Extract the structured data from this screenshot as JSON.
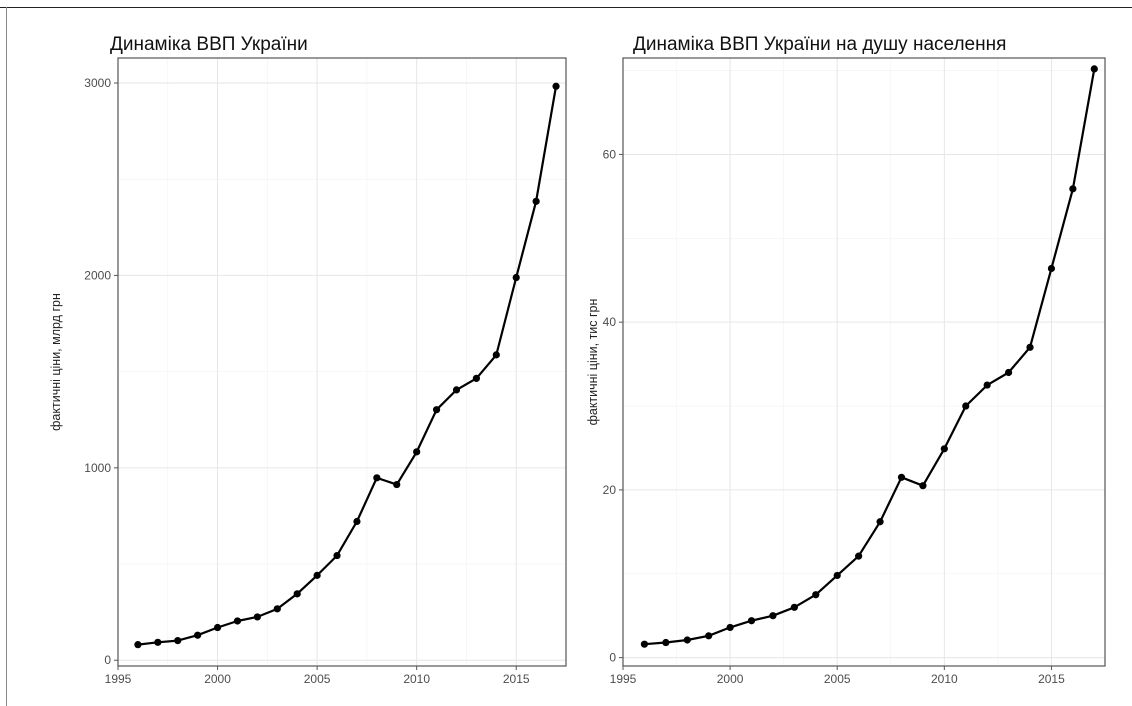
{
  "chart_data": [
    {
      "type": "line",
      "title": "Динаміка ВВП України",
      "xlabel": "",
      "ylabel": "фактичні ціни, млрд грн",
      "xlim": [
        1995,
        2017.5
      ],
      "ylim": [
        -30,
        3130
      ],
      "xticks": [
        1995,
        2000,
        2005,
        2010,
        2015
      ],
      "yticks": [
        0,
        1000,
        2000,
        3000
      ],
      "grid": true,
      "series": [
        {
          "x": [
            1996,
            1997,
            1998,
            1999,
            2000,
            2001,
            2002,
            2003,
            2004,
            2005,
            2006,
            2007,
            2008,
            2009,
            2010,
            2011,
            2012,
            2013,
            2014,
            2015,
            2016,
            2017
          ],
          "values": [
            81,
            93,
            102,
            130,
            170,
            204,
            225,
            267,
            345,
            441,
            544,
            721,
            948,
            913,
            1083,
            1302,
            1405,
            1465,
            1587,
            1989,
            2385,
            2983
          ]
        }
      ]
    },
    {
      "type": "line",
      "title": "Динаміка ВВП України на душу населення",
      "xlabel": "",
      "ylabel": "фактичні ціни, тис грн",
      "xlim": [
        1995,
        2017.5
      ],
      "ylim": [
        -1,
        71.5
      ],
      "xticks": [
        1995,
        2000,
        2005,
        2010,
        2015
      ],
      "yticks": [
        0,
        20,
        40,
        60
      ],
      "grid": true,
      "series": [
        {
          "x": [
            1996,
            1997,
            1998,
            1999,
            2000,
            2001,
            2002,
            2003,
            2004,
            2005,
            2006,
            2007,
            2008,
            2009,
            2010,
            2011,
            2012,
            2013,
            2014,
            2015,
            2016,
            2017
          ],
          "values": [
            1.6,
            1.8,
            2.1,
            2.6,
            3.6,
            4.4,
            5.0,
            6.0,
            7.5,
            9.8,
            12.1,
            16.2,
            21.5,
            20.5,
            24.9,
            30.0,
            32.5,
            34.0,
            37.0,
            46.4,
            55.9,
            70.2
          ]
        }
      ]
    }
  ]
}
